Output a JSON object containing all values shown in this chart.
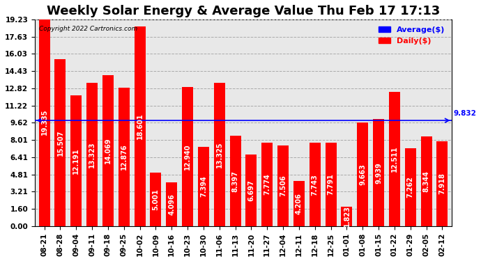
{
  "title": "Weekly Solar Energy & Average Value Thu Feb 17 17:13",
  "copyright": "Copyright 2022 Cartronics.com",
  "legend_avg": "Average($)",
  "legend_daily": "Daily($)",
  "average_value": 9.832,
  "categories": [
    "08-21",
    "08-28",
    "09-04",
    "09-11",
    "09-18",
    "09-25",
    "10-02",
    "10-09",
    "10-16",
    "10-23",
    "10-30",
    "11-06",
    "11-13",
    "11-20",
    "11-27",
    "12-04",
    "12-11",
    "12-18",
    "12-25",
    "01-01",
    "01-08",
    "01-15",
    "01-22",
    "01-29",
    "02-05",
    "02-12"
  ],
  "values": [
    19.335,
    15.507,
    12.191,
    13.323,
    14.069,
    12.876,
    18.601,
    5.001,
    4.096,
    12.94,
    7.394,
    13.325,
    8.397,
    6.697,
    7.774,
    7.506,
    4.206,
    7.743,
    7.791,
    1.823,
    9.663,
    9.939,
    12.511,
    7.262,
    8.344,
    7.918
  ],
  "bar_color": "#ff0000",
  "avg_line_color": "#0000ff",
  "grid_color": "#aaaaaa",
  "background_color": "#ffffff",
  "plot_bg_color": "#e8e8e8",
  "yticks": [
    0.0,
    1.6,
    3.21,
    4.81,
    6.41,
    8.01,
    9.62,
    11.22,
    12.82,
    14.43,
    16.03,
    17.63,
    19.23
  ],
  "ylim": [
    0,
    19.23
  ],
  "title_fontsize": 13,
  "tick_fontsize": 7.5,
  "label_fontsize": 7,
  "avg_label_fontsize": 7.5
}
